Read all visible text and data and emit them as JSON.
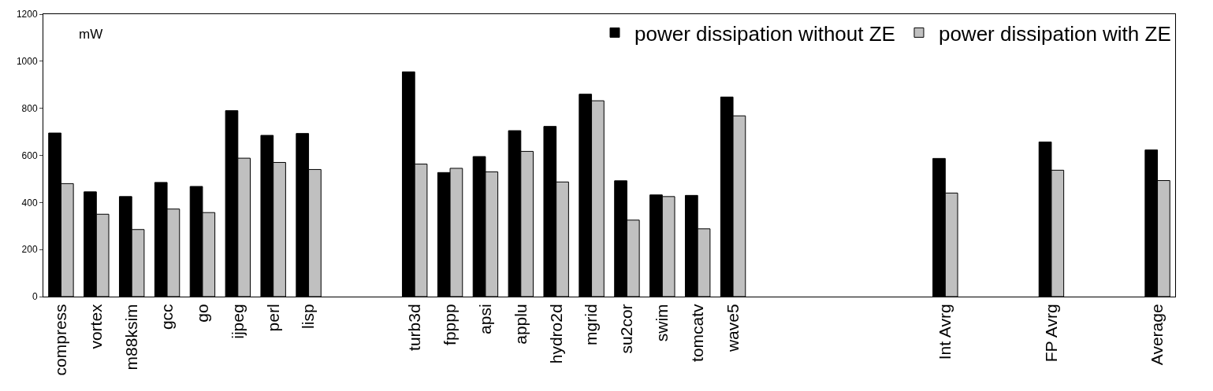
{
  "chart_data": {
    "type": "bar",
    "ylabel": "mW",
    "categories": [
      "compress",
      "vortex",
      "m88ksim",
      "gcc",
      "go",
      "ijpeg",
      "perl",
      "lisp",
      null,
      null,
      "turb3d",
      "fpppp",
      "apsi",
      "applu",
      "hydro2d",
      "mgrid",
      "su2cor",
      "swim",
      "tomcatv",
      "wave5",
      null,
      null,
      null,
      null,
      null,
      "Int Avrg",
      null,
      null,
      "FP Avrg",
      null,
      null,
      "Average"
    ],
    "series": [
      {
        "name": "power dissipation without ZE",
        "color": "#000000",
        "values": [
          695,
          445,
          425,
          485,
          468,
          790,
          685,
          693,
          null,
          null,
          955,
          527,
          595,
          705,
          723,
          860,
          492,
          432,
          430,
          848,
          null,
          null,
          null,
          null,
          null,
          587,
          null,
          null,
          657,
          null,
          null,
          623
        ]
      },
      {
        "name": "power dissipation with ZE",
        "color": "#c0c0c0",
        "values": [
          480,
          350,
          285,
          372,
          357,
          588,
          570,
          540,
          null,
          null,
          563,
          545,
          530,
          617,
          487,
          832,
          325,
          425,
          288,
          768,
          null,
          null,
          null,
          null,
          null,
          440,
          null,
          null,
          537,
          null,
          null,
          493
        ]
      }
    ],
    "ylim": [
      0,
      1200
    ],
    "yticks": [
      0,
      200,
      400,
      600,
      800,
      1000,
      1200
    ],
    "grid": false,
    "legend": "top right"
  }
}
